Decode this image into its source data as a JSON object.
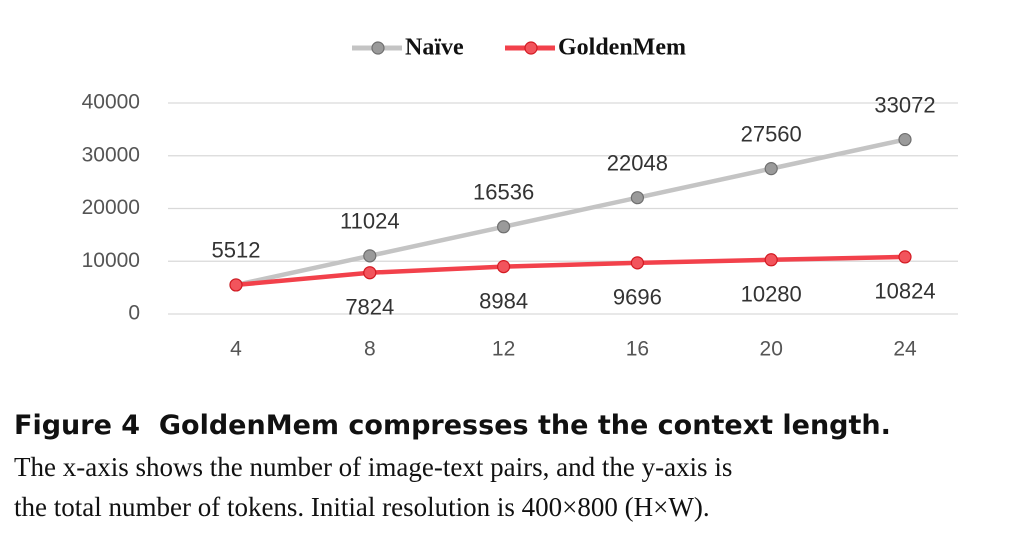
{
  "chart_data": {
    "type": "line",
    "categories": [
      4,
      8,
      12,
      16,
      20,
      24
    ],
    "series": [
      {
        "name": "Naïve",
        "color": "#c4c4c4",
        "marker_color": "#9a9a9a",
        "values": [
          5512,
          11024,
          16536,
          22048,
          27560,
          33072
        ]
      },
      {
        "name": "GoldenMem",
        "color": "#f2414b",
        "marker_color": "#f2545c",
        "values": [
          5512,
          7824,
          8984,
          9696,
          10280,
          10824
        ],
        "value_labels": [
          null,
          "7824",
          "8984",
          "9696",
          "10280",
          "10824"
        ]
      }
    ],
    "ylim": [
      0,
      40000
    ],
    "yticks": [
      0,
      10000,
      20000,
      30000,
      40000
    ],
    "grid": true,
    "legend": "top"
  },
  "caption": {
    "label": "Figure 4",
    "title": "GoldenMem compresses the the context length.",
    "lines": [
      "The x-axis shows the number of image-text pairs, and the y-axis is",
      "the total number of tokens. Initial resolution is 400×800 (H×W)."
    ]
  }
}
